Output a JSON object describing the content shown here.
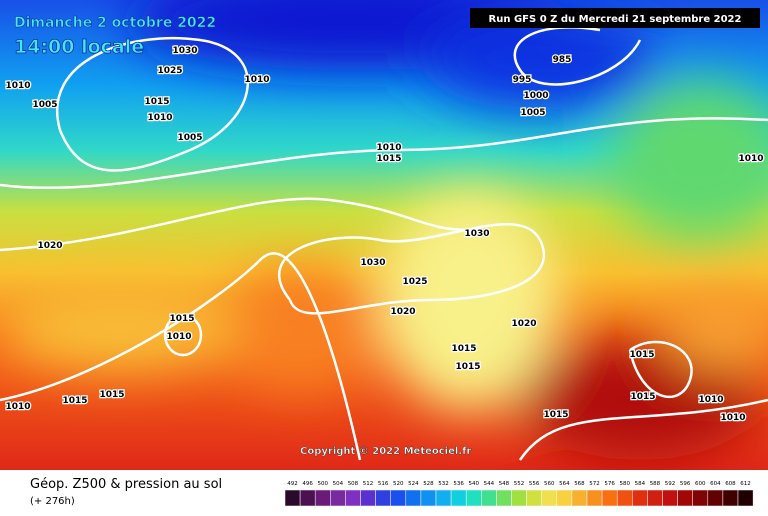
{
  "header": {
    "title": "Dimanche 2 octobre 2022",
    "time": "14:00 locale",
    "run": "Run GFS 0 Z du Mercredi 21 septembre 2022"
  },
  "copyright": "Copyright © 2022 Meteociel.fr",
  "footer": {
    "title": "Géop. Z500 & pression au sol",
    "lead": "(+ 276h)"
  },
  "isobar_labels": [
    1030,
    1025,
    1010,
    1005,
    1015,
    1010,
    1005,
    995,
    985,
    1000,
    1005,
    1010,
    1010,
    1015,
    1010,
    1020,
    1030,
    1030,
    1025,
    1020,
    1015,
    1010,
    1020,
    1015,
    1015,
    1015,
    1015,
    1010,
    1010,
    1015,
    1015,
    1015,
    1010
  ],
  "legend": {
    "values": [
      492,
      496,
      500,
      504,
      508,
      512,
      516,
      520,
      524,
      528,
      532,
      536,
      540,
      544,
      548,
      552,
      556,
      560,
      564,
      568,
      572,
      576,
      580,
      584,
      588,
      592,
      596,
      600,
      604,
      608,
      612
    ],
    "colors": [
      "#2a0a2a",
      "#4b1050",
      "#6a1a78",
      "#7a2aa0",
      "#8030c0",
      "#5a30d0",
      "#3040e0",
      "#1a50f0",
      "#1070f0",
      "#1090f0",
      "#10b0f0",
      "#10d0e0",
      "#20e0c0",
      "#40e090",
      "#70e060",
      "#a0e040",
      "#d0e040",
      "#f0e050",
      "#f8d040",
      "#f8b030",
      "#f89020",
      "#f87010",
      "#f05010",
      "#e03010",
      "#d02010",
      "#c01010",
      "#a00808",
      "#800404",
      "#600202",
      "#400000",
      "#200000"
    ]
  }
}
